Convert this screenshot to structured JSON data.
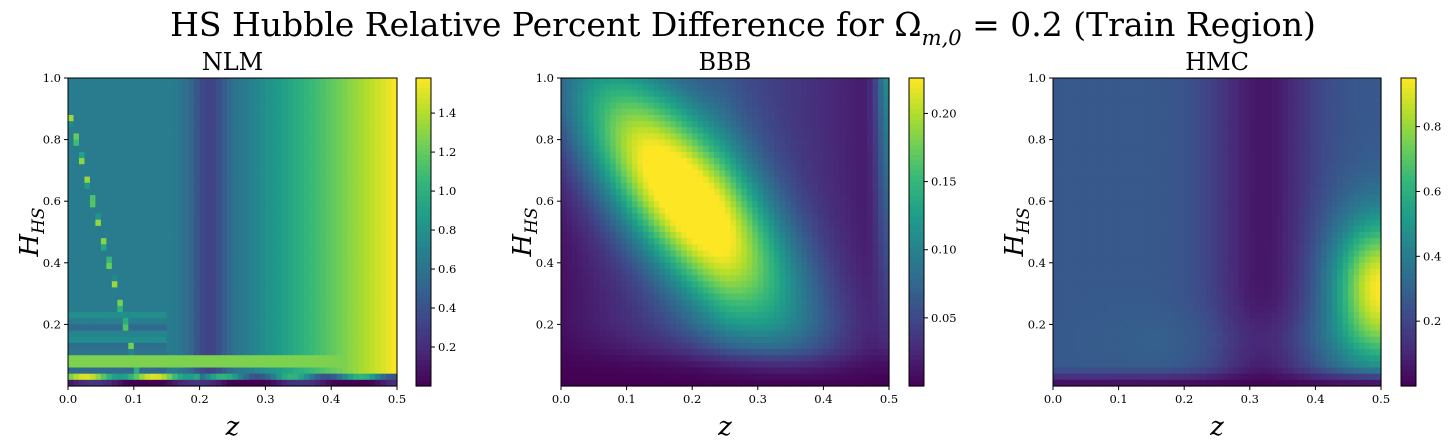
{
  "figure": {
    "title": "HS Hubble Relative Percent Difference for Ω",
    "title_subscript": "m,0",
    "title_suffix": " = 0.2 (Train Region)",
    "colormap": "viridis",
    "colormap_stops": [
      "#440154",
      "#482878",
      "#3e4989",
      "#31688e",
      "#26828e",
      "#1f9e89",
      "#35b779",
      "#6ece58",
      "#b5de2b",
      "#fde725"
    ]
  },
  "chart_data": [
    {
      "type": "heatmap",
      "title": "NLM",
      "xlabel": "z",
      "ylabel_main": "H",
      "ylabel_sub": "HS",
      "xlim": [
        0.0,
        0.5
      ],
      "ylim": [
        0.0,
        1.0
      ],
      "xticks": [
        "0.0",
        "0.1",
        "0.2",
        "0.3",
        "0.4",
        "0.5"
      ],
      "yticks": [
        "0.2",
        "0.4",
        "0.6",
        "0.8",
        "1.0"
      ],
      "colorbar": {
        "min": 0.0,
        "max": 1.58,
        "ticks": [
          "0.2",
          "0.4",
          "0.6",
          "0.8",
          "1.0",
          "1.2",
          "1.4"
        ]
      }
    },
    {
      "type": "heatmap",
      "title": "BBB",
      "xlabel": "z",
      "ylabel_main": "H",
      "ylabel_sub": "HS",
      "xlim": [
        0.0,
        0.5
      ],
      "ylim": [
        0.0,
        1.0
      ],
      "xticks": [
        "0.0",
        "0.1",
        "0.2",
        "0.3",
        "0.4",
        "0.5"
      ],
      "yticks": [
        "0.2",
        "0.4",
        "0.6",
        "0.8",
        "1.0"
      ],
      "colorbar": {
        "min": 0.0,
        "max": 0.226,
        "ticks": [
          "0.05",
          "0.10",
          "0.15",
          "0.20"
        ]
      }
    },
    {
      "type": "heatmap",
      "title": "HMC",
      "xlabel": "z",
      "ylabel_main": "H",
      "ylabel_sub": "HS",
      "xlim": [
        0.0,
        0.5
      ],
      "ylim": [
        0.0,
        1.0
      ],
      "xticks": [
        "0.0",
        "0.1",
        "0.2",
        "0.3",
        "0.4",
        "0.5"
      ],
      "yticks": [
        "0.2",
        "0.4",
        "0.6",
        "0.8",
        "1.0"
      ],
      "colorbar": {
        "min": 0.0,
        "max": 0.95,
        "ticks": [
          "0.2",
          "0.4",
          "0.6",
          "0.8"
        ]
      }
    }
  ]
}
